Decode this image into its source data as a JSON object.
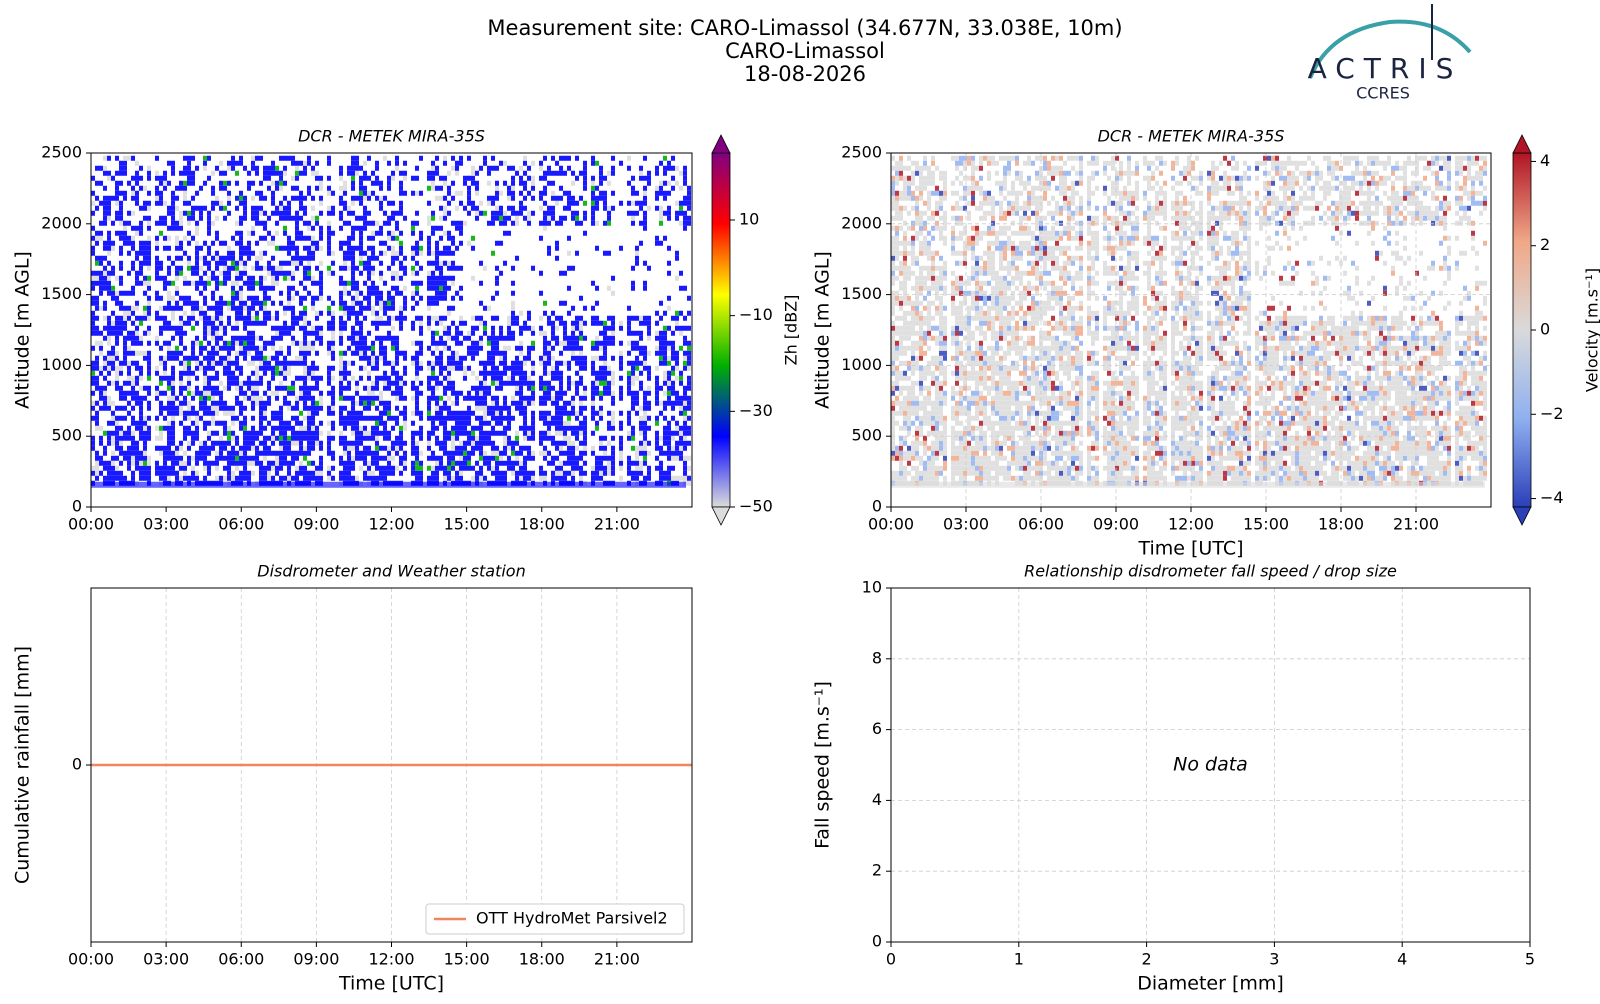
{
  "header": {
    "title": [
      "Measurement site: CARO-Limassol (34.677N, 33.038E, 10m)",
      "CARO-Limassol",
      "18-08-2026"
    ],
    "logo_text": "ACTRIS",
    "logo_sub": "CCRES"
  },
  "chart_data": [
    {
      "type": "heatmap",
      "title": "DCR - METEK MIRA-35S",
      "ylabel": "Altitude [m AGL]",
      "xlim": [
        0,
        24
      ],
      "xticks": [
        {
          "value": 0,
          "label": "00:00"
        },
        {
          "value": 3,
          "label": "03:00"
        },
        {
          "value": 6,
          "label": "06:00"
        },
        {
          "value": 9,
          "label": "09:00"
        },
        {
          "value": 12,
          "label": "12:00"
        },
        {
          "value": 15,
          "label": "15:00"
        },
        {
          "value": 18,
          "label": "18:00"
        },
        {
          "value": 21,
          "label": "21:00"
        }
      ],
      "ylim": [
        0,
        2500
      ],
      "yticks": [
        0,
        500,
        1000,
        1500,
        2000,
        2500
      ],
      "grid": false,
      "colormap": [
        "#dcdcdc",
        "#0000ff",
        "#00b000",
        "#ffff00",
        "#ff0000",
        "#800080"
      ],
      "colorbar": {
        "label": "Zh [dBZ]",
        "lim": [
          -50,
          24
        ],
        "ticks": [
          {
            "value": -50,
            "label": "−50"
          },
          {
            "value": -30,
            "label": "−30"
          },
          {
            "value": -10,
            "label": "−10"
          },
          10
        ]
      }
    },
    {
      "type": "heatmap",
      "title": "DCR - METEK MIRA-35S",
      "xlabel": "Time [UTC]",
      "ylabel": "Altitude [m AGL]",
      "xlim": [
        0,
        24
      ],
      "xticks": [
        {
          "value": 0,
          "label": "00:00"
        },
        {
          "value": 3,
          "label": "03:00"
        },
        {
          "value": 6,
          "label": "06:00"
        },
        {
          "value": 9,
          "label": "09:00"
        },
        {
          "value": 12,
          "label": "12:00"
        },
        {
          "value": 15,
          "label": "15:00"
        },
        {
          "value": 18,
          "label": "18:00"
        },
        {
          "value": 21,
          "label": "21:00"
        }
      ],
      "ylim": [
        0,
        2500
      ],
      "yticks": [
        0,
        500,
        1000,
        1500,
        2000,
        2500
      ],
      "grid": true,
      "colormap": [
        "#2b3fb8",
        "#8fb0f0",
        "#dadada",
        "#f0a888",
        "#b01525"
      ],
      "colorbar": {
        "label": "Velocity [m.s⁻¹]",
        "lim": [
          -4.2,
          4.2
        ],
        "ticks": [
          {
            "value": -4,
            "label": "−4"
          },
          {
            "value": -2,
            "label": "−2"
          },
          0,
          2,
          4
        ]
      }
    },
    {
      "type": "line",
      "title": "Disdrometer and Weather station",
      "xlabel": "Time [UTC]",
      "ylabel": "Cumulative rainfall [mm]",
      "xlim": [
        0,
        24
      ],
      "xticks": [
        {
          "value": 0,
          "label": "00:00"
        },
        {
          "value": 3,
          "label": "03:00"
        },
        {
          "value": 6,
          "label": "06:00"
        },
        {
          "value": 9,
          "label": "09:00"
        },
        {
          "value": 12,
          "label": "12:00"
        },
        {
          "value": 15,
          "label": "15:00"
        },
        {
          "value": 18,
          "label": "18:00"
        },
        {
          "value": 21,
          "label": "21:00"
        }
      ],
      "ylim": [
        -1,
        1
      ],
      "yticks": [
        0
      ],
      "grid": true,
      "legend": "lower right",
      "x": [
        0,
        24
      ],
      "series": [
        {
          "name": "OTT HydroMet Parsivel2",
          "color": "#f0865c",
          "values": [
            0,
            0
          ]
        }
      ]
    },
    {
      "type": "scatter",
      "title": "Relationship disdrometer fall speed / drop size",
      "xlabel": "Diameter [mm]",
      "ylabel": "Fall speed [m.s⁻¹]",
      "xlim": [
        0,
        5
      ],
      "xticks": [
        0,
        1,
        2,
        3,
        4,
        5
      ],
      "ylim": [
        0,
        10
      ],
      "yticks": [
        0,
        2,
        4,
        6,
        8,
        10
      ],
      "grid": true,
      "annotation": "No data"
    }
  ]
}
